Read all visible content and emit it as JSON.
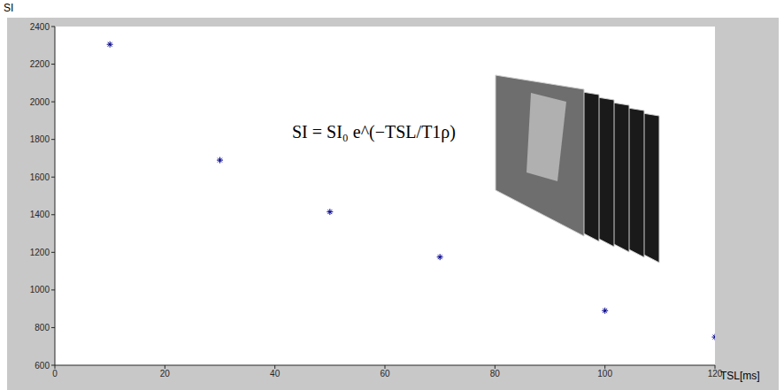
{
  "chart_data": {
    "type": "scatter",
    "x_label": "TSL[ms]",
    "y_label": "SI",
    "annotation": "SI = SI₀ e^(−TSL/T1ρ)",
    "x": [
      10,
      30,
      50,
      70,
      100,
      120
    ],
    "values": [
      2305,
      1690,
      1415,
      1175,
      890,
      750
    ],
    "color": "#00008b",
    "marker": "asterisk",
    "xlim": [
      0,
      120
    ],
    "xticks": [
      0,
      20,
      40,
      60,
      80,
      100,
      120
    ],
    "ylim": [
      600,
      2400
    ],
    "yticks": [
      600,
      800,
      1000,
      1200,
      1400,
      1600,
      1800,
      2000,
      2200,
      2400
    ],
    "grid": false
  }
}
